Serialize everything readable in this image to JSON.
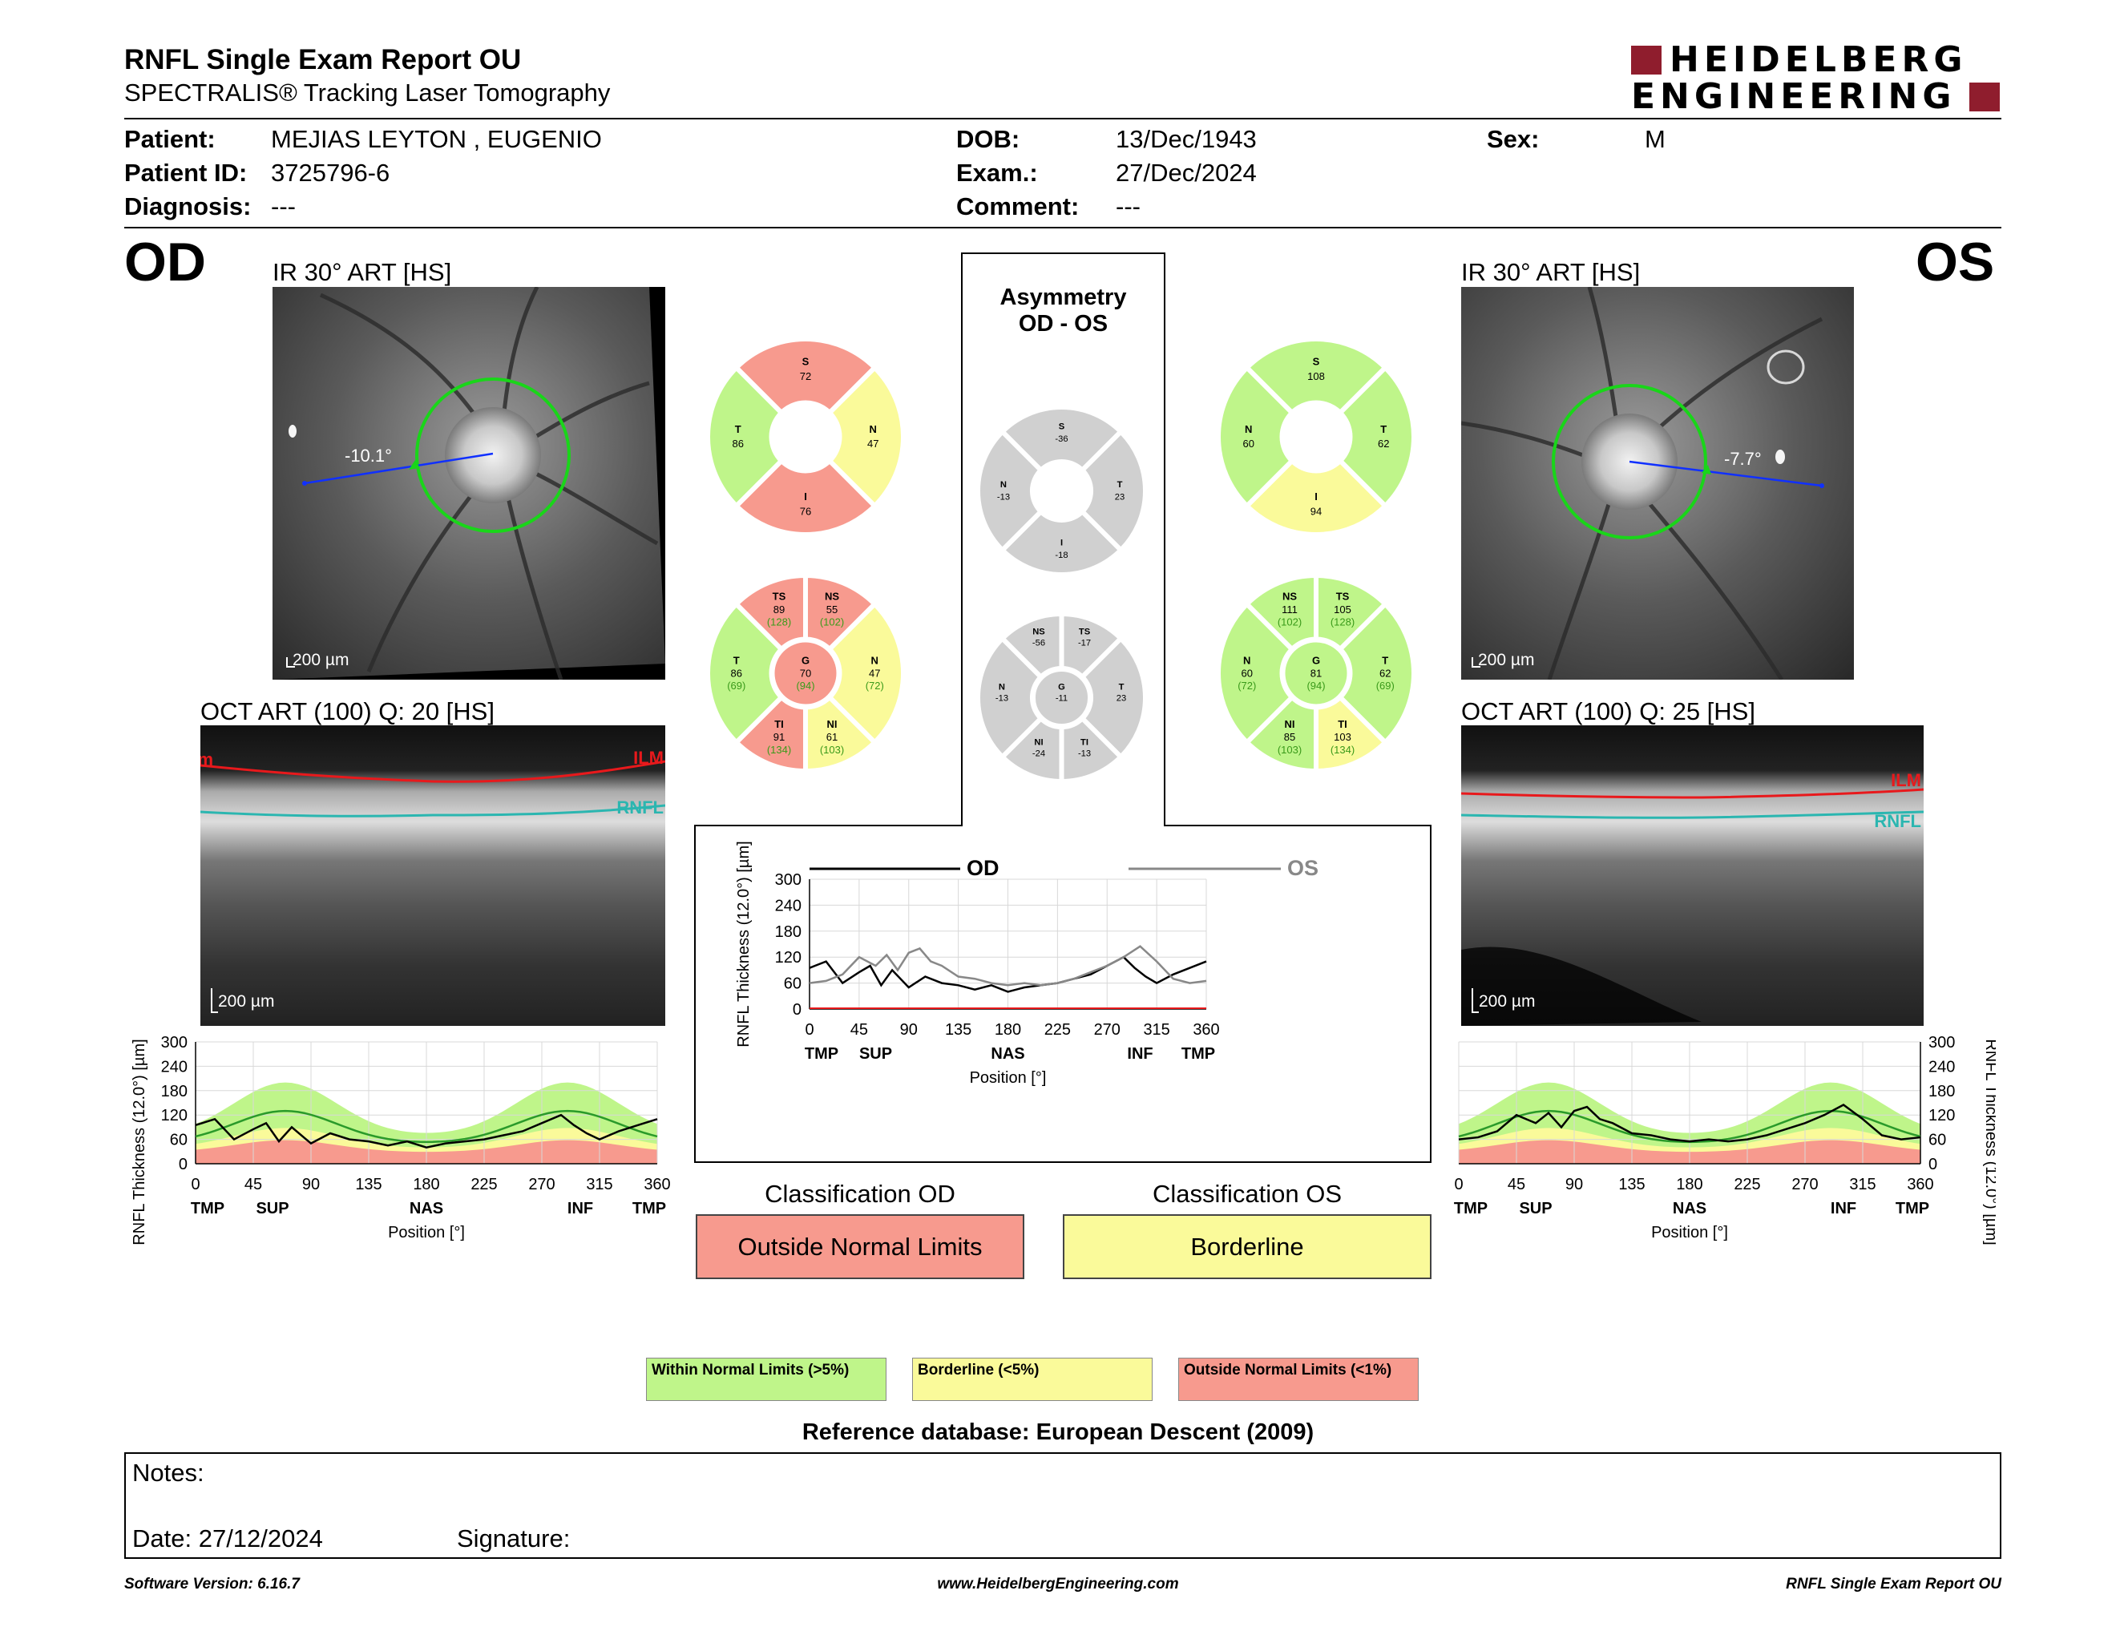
{
  "header": {
    "title": "RNFL Single Exam Report OU",
    "subtitle": "SPECTRALIS® Tracking Laser Tomography",
    "logo_line1": "HEIDELBERG",
    "logo_line2": "ENGINEERING",
    "brand_color": "#8f1d2d"
  },
  "patient": {
    "patient_label": "Patient:",
    "patient_value": "MEJIAS LEYTON , EUGENIO",
    "id_label": "Patient ID:",
    "id_value": "3725796-6",
    "diagnosis_label": "Diagnosis:",
    "diagnosis_value": "---",
    "dob_label": "DOB:",
    "dob_value": "13/Dec/1943",
    "exam_label": "Exam.:",
    "exam_value": "27/Dec/2024",
    "comment_label": "Comment:",
    "comment_value": "---",
    "sex_label": "Sex:",
    "sex_value": "M"
  },
  "od": {
    "eye": "OD",
    "ir_title": "IR 30° ART [HS]",
    "angle": "-10.1°",
    "scale": "200 µm",
    "oct_title": "OCT ART (100) Q: 20 [HS]",
    "ilm": "ILM",
    "rnfl": "RNFL",
    "sectors4": {
      "S": "72",
      "N": "47",
      "I": "76",
      "T": "86"
    },
    "sectors6": {
      "TS": "89",
      "TS_ref": "(128)",
      "NS": "55",
      "NS_ref": "(102)",
      "T": "86",
      "T_ref": "(69)",
      "G": "70",
      "G_ref": "(94)",
      "N": "47",
      "N_ref": "(72)",
      "TI": "91",
      "TI_ref": "(134)",
      "NI": "61",
      "NI_ref": "(103)"
    }
  },
  "os": {
    "eye": "OS",
    "ir_title": "IR 30° ART [HS]",
    "angle": "-7.7°",
    "scale": "200 µm",
    "oct_title": "OCT ART (100) Q: 25 [HS]",
    "ilm": "ILM",
    "rnfl": "RNFL",
    "sectors4": {
      "S": "108",
      "T": "62",
      "I": "94",
      "N": "60"
    },
    "sectors6": {
      "NS": "111",
      "NS_ref": "(102)",
      "TS": "105",
      "TS_ref": "(128)",
      "N": "60",
      "N_ref": "(72)",
      "G": "81",
      "G_ref": "(94)",
      "T": "62",
      "T_ref": "(69)",
      "NI": "85",
      "NI_ref": "(103)",
      "TI": "103",
      "TI_ref": "(134)"
    }
  },
  "asym": {
    "title1": "Asymmetry",
    "title2": "OD - OS",
    "sectors4": {
      "S": "-36",
      "N": "-13",
      "T": "23",
      "I": "-18"
    },
    "sectors6": {
      "NS": "-56",
      "TS": "-17",
      "N": "-13",
      "G": "-11",
      "T": "23",
      "NI": "-24",
      "TI": "-13"
    }
  },
  "sector_labels": {
    "S": "S",
    "N": "N",
    "I": "I",
    "T": "T",
    "TS": "TS",
    "NS": "NS",
    "G": "G",
    "TI": "TI",
    "NI": "NI"
  },
  "colors": {
    "green": "#bff58a",
    "yellow": "#fafa9a",
    "red": "#f79a8e",
    "gray": "#d0d0d0",
    "ilm": "#e8191c",
    "rnfl": "#2bb6b0"
  },
  "chart_axes": {
    "y_ticks": [
      "300",
      "240",
      "180",
      "120",
      "60",
      "0"
    ],
    "x_ticks": [
      "0",
      "45",
      "90",
      "135",
      "180",
      "225",
      "270",
      "315",
      "360"
    ],
    "x_regions": [
      "TMP",
      "SUP",
      "NAS",
      "INF",
      "TMP"
    ],
    "ylabel": "RNFL Thickness (12.0°) [µm]",
    "xlabel": "Position [°]"
  },
  "compare_legend": {
    "od": "OD",
    "os": "OS"
  },
  "chart_data": [
    {
      "type": "line",
      "title": "",
      "xlabel": "Position [°]",
      "ylabel": "RNFL Thickness (12.0°) [µm]",
      "xlim": [
        0,
        360
      ],
      "ylim": [
        0,
        300
      ],
      "series": [
        {
          "name": "OD",
          "x": [
            0,
            15,
            30,
            45,
            55,
            65,
            75,
            90,
            105,
            120,
            135,
            150,
            165,
            180,
            195,
            210,
            225,
            240,
            255,
            270,
            285,
            295,
            305,
            315,
            330,
            345,
            360
          ],
          "values": [
            95,
            110,
            60,
            85,
            100,
            55,
            90,
            50,
            75,
            60,
            55,
            45,
            55,
            40,
            50,
            55,
            60,
            70,
            80,
            100,
            120,
            95,
            75,
            60,
            80,
            95,
            110
          ]
        },
        {
          "name": "OS",
          "x": [
            0,
            15,
            30,
            45,
            60,
            70,
            80,
            90,
            100,
            110,
            120,
            135,
            150,
            165,
            180,
            195,
            210,
            225,
            240,
            255,
            270,
            285,
            300,
            315,
            330,
            345,
            360
          ],
          "values": [
            60,
            65,
            80,
            120,
            100,
            125,
            90,
            130,
            140,
            110,
            100,
            75,
            70,
            60,
            55,
            60,
            55,
            60,
            70,
            85,
            100,
            120,
            145,
            110,
            70,
            60,
            65
          ]
        }
      ]
    },
    {
      "type": "area",
      "title": "",
      "xlabel": "Position [°]",
      "ylabel": "RNFL Thickness (12.0°) [µm]",
      "xlim": [
        0,
        360
      ],
      "ylim": [
        0,
        300
      ],
      "series": [
        {
          "name": "OD",
          "x": [
            0,
            15,
            30,
            45,
            55,
            65,
            75,
            90,
            105,
            120,
            135,
            150,
            165,
            180,
            195,
            210,
            225,
            240,
            255,
            270,
            285,
            295,
            305,
            315,
            330,
            345,
            360
          ],
          "values": [
            95,
            110,
            60,
            85,
            100,
            55,
            90,
            50,
            75,
            60,
            55,
            45,
            55,
            40,
            50,
            55,
            60,
            70,
            80,
            100,
            120,
            95,
            75,
            60,
            80,
            95,
            110
          ]
        }
      ]
    },
    {
      "type": "area",
      "title": "",
      "xlabel": "Position [°]",
      "ylabel": "RNFL Thickness (12.0°) [µm]",
      "xlim": [
        0,
        360
      ],
      "ylim": [
        0,
        300
      ],
      "series": [
        {
          "name": "OS",
          "x": [
            0,
            15,
            30,
            45,
            60,
            70,
            80,
            90,
            100,
            110,
            120,
            135,
            150,
            165,
            180,
            195,
            210,
            225,
            240,
            255,
            270,
            285,
            300,
            315,
            330,
            345,
            360
          ],
          "values": [
            60,
            65,
            80,
            120,
            100,
            125,
            90,
            130,
            140,
            110,
            100,
            75,
            70,
            60,
            55,
            60,
            55,
            60,
            70,
            85,
            100,
            120,
            145,
            110,
            70,
            60,
            65
          ]
        }
      ]
    }
  ],
  "classification": {
    "od_title": "Classification OD",
    "od_value": "Outside Normal Limits",
    "os_title": "Classification OS",
    "os_value": "Borderline"
  },
  "legend": {
    "within": "Within Normal Limits (>5%)",
    "borderline": "Borderline (<5%)",
    "outside": "Outside Normal Limits (<1%)"
  },
  "reference_db": "Reference database: European Descent (2009)",
  "notes": {
    "label": "Notes:",
    "date": "Date: 27/12/2024",
    "signature": "Signature:"
  },
  "footer": {
    "version": "Software Version: 6.16.7",
    "url": "www.HeidelbergEngineering.com",
    "report": "RNFL Single Exam Report OU"
  }
}
